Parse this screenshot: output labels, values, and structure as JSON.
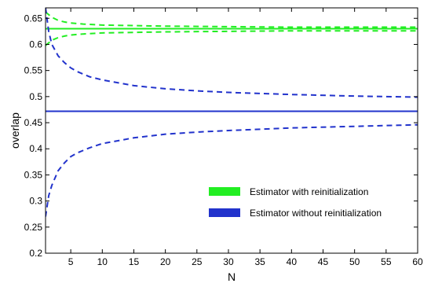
{
  "chart_data": {
    "type": "line",
    "title": "",
    "xlabel": "N",
    "ylabel": "overlap",
    "xlim": [
      1,
      60
    ],
    "ylim": [
      0.2,
      0.67
    ],
    "xticks": [
      5,
      10,
      15,
      20,
      25,
      30,
      35,
      40,
      45,
      50,
      55,
      60
    ],
    "yticks": [
      0.2,
      0.25,
      0.3,
      0.35,
      0.4,
      0.45,
      0.5,
      0.55,
      0.6,
      0.65
    ],
    "grid": false,
    "legend_position": "lower-right",
    "colors": {
      "green": "#22ee22",
      "blue": "#2233cc"
    },
    "series": [
      {
        "name": "Estimator with reinitialization",
        "color": "#22ee22",
        "style": "solid",
        "legend": true,
        "x": [
          1,
          60
        ],
        "y": [
          0.63,
          0.63
        ]
      },
      {
        "color": "#22ee22",
        "style": "dashed",
        "legend": false,
        "x": [
          1,
          2,
          3,
          4,
          5,
          7,
          10,
          15,
          20,
          30,
          40,
          50,
          60
        ],
        "y": [
          0.662,
          0.652,
          0.646,
          0.643,
          0.641,
          0.639,
          0.637,
          0.636,
          0.635,
          0.634,
          0.633,
          0.633,
          0.633
        ]
      },
      {
        "color": "#22ee22",
        "style": "dashed",
        "legend": false,
        "x": [
          1,
          2,
          3,
          4,
          5,
          7,
          10,
          15,
          20,
          30,
          40,
          50,
          60
        ],
        "y": [
          0.598,
          0.608,
          0.613,
          0.616,
          0.618,
          0.62,
          0.622,
          0.623,
          0.624,
          0.625,
          0.626,
          0.626,
          0.626
        ]
      },
      {
        "name": "Estimator without reinitialization",
        "color": "#2233cc",
        "style": "solid",
        "legend": true,
        "x": [
          1,
          60
        ],
        "y": [
          0.472,
          0.472
        ]
      },
      {
        "color": "#2233cc",
        "style": "dashed",
        "legend": false,
        "x": [
          1,
          1.5,
          2,
          3,
          4,
          5,
          6,
          8,
          10,
          15,
          20,
          25,
          30,
          40,
          50,
          60
        ],
        "y": [
          0.67,
          0.625,
          0.6,
          0.578,
          0.565,
          0.555,
          0.548,
          0.538,
          0.532,
          0.521,
          0.515,
          0.511,
          0.508,
          0.504,
          0.501,
          0.499
        ]
      },
      {
        "color": "#2233cc",
        "style": "dashed",
        "legend": false,
        "x": [
          1,
          1.5,
          2,
          3,
          4,
          5,
          6,
          8,
          10,
          15,
          20,
          25,
          30,
          40,
          50,
          60
        ],
        "y": [
          0.27,
          0.31,
          0.33,
          0.358,
          0.373,
          0.385,
          0.392,
          0.402,
          0.41,
          0.421,
          0.428,
          0.432,
          0.435,
          0.44,
          0.443,
          0.446
        ]
      }
    ]
  }
}
